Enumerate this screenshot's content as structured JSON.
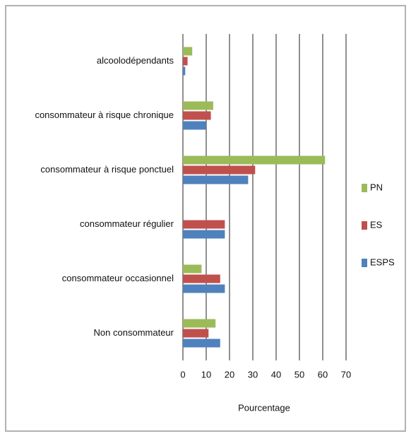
{
  "chart_data": {
    "type": "hbar",
    "x_label": "Pourcentage",
    "categories": [
      "alcoolodépendants",
      "consommateur à risque chronique",
      "consommateur à risque ponctuel",
      "consommateur régulier",
      "consommateur occasionnel",
      "Non consommateur"
    ],
    "series": [
      {
        "name": "PN",
        "color": "#9bbb59",
        "values": [
          4,
          13,
          61,
          0,
          8,
          14
        ]
      },
      {
        "name": "ES",
        "color": "#c0504d",
        "values": [
          2,
          12,
          31,
          18,
          16,
          11
        ]
      },
      {
        "name": "ESPS",
        "color": "#4f81bd",
        "values": [
          1,
          10,
          28,
          18,
          18,
          16
        ]
      }
    ],
    "xlim": [
      0,
      70
    ],
    "xticks": [
      0,
      10,
      20,
      30,
      40,
      50,
      60,
      70
    ],
    "grid": true,
    "legend": "right"
  }
}
